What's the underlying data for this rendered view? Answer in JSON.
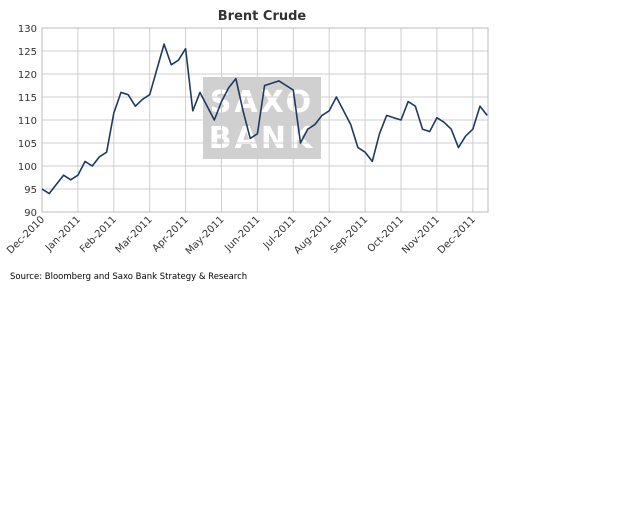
{
  "chart_data": {
    "type": "line",
    "title": "Brent Crude",
    "source": "Source: Bloomberg and Saxo Bank Strategy & Research",
    "watermark": "SAXO BANK",
    "categories": [
      "Dec-2010",
      null,
      null,
      null,
      null,
      "Jan-2011",
      null,
      null,
      null,
      null,
      "Feb-2011",
      null,
      null,
      null,
      null,
      "Mar-2011",
      null,
      null,
      null,
      null,
      "Apr-2011",
      null,
      null,
      null,
      null,
      "May-2011",
      null,
      null,
      null,
      null,
      "Jun-2011",
      null,
      null,
      null,
      null,
      "Jul-2011",
      null,
      null,
      null,
      null,
      "Aug-2011",
      null,
      null,
      null,
      null,
      "Sep-2011",
      null,
      null,
      null,
      null,
      "Oct-2011",
      null,
      null,
      null,
      null,
      "Nov-2011",
      null,
      null,
      null,
      null,
      "Dec-2011",
      null,
      null
    ],
    "values": [
      95,
      94,
      96,
      98,
      97,
      98,
      101,
      100,
      102,
      103,
      111.5,
      116,
      115.5,
      113,
      114.5,
      115.5,
      121,
      126.5,
      122,
      123,
      125.5,
      112,
      116,
      113,
      110,
      114,
      117,
      119,
      112,
      106,
      107,
      117.5,
      118,
      118.5,
      117.5,
      116.5,
      105,
      108,
      109,
      111,
      112,
      115,
      112,
      109,
      104,
      103,
      101,
      107,
      111,
      110.5,
      110,
      114,
      113,
      108,
      107.5,
      110.5,
      109.5,
      108,
      104,
      106.5,
      108,
      113,
      111
    ],
    "color": "#1f3a60",
    "ylim": [
      90,
      130
    ],
    "yticks": [
      90,
      95,
      100,
      105,
      110,
      115,
      120,
      125,
      130
    ],
    "grid": true
  }
}
